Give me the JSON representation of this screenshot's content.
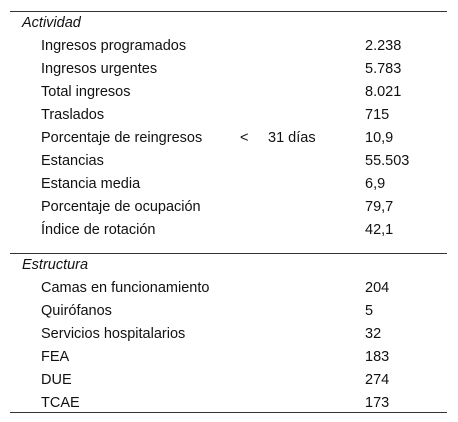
{
  "table": {
    "sections": [
      {
        "title": "Actividad",
        "rows": [
          {
            "label": "Ingresos programados",
            "value": "2.238"
          },
          {
            "label": "Ingresos urgentes",
            "value": "5.783"
          },
          {
            "label": "Total ingresos",
            "value": "8.021"
          },
          {
            "label": "Traslados",
            "value": "715"
          },
          {
            "label": "Porcentaje de reingresos",
            "operator": "<",
            "threshold": "31 días",
            "value": "10,9"
          },
          {
            "label": "Estancias",
            "value": "55.503"
          },
          {
            "label": "Estancia media",
            "value": "6,9"
          },
          {
            "label": "Porcentaje de ocupación",
            "value": "79,7"
          },
          {
            "label": "Índice de rotación",
            "value": "42,1"
          }
        ]
      },
      {
        "title": "Estructura",
        "rows": [
          {
            "label": "Camas en funcionamiento",
            "value": "204"
          },
          {
            "label": "Quirófanos",
            "value": "5"
          },
          {
            "label": "Servicios hospitalarios",
            "value": "32"
          },
          {
            "label": "FEA",
            "value": "183"
          },
          {
            "label": "DUE",
            "value": "274"
          },
          {
            "label": "TCAE",
            "value": "173"
          }
        ]
      }
    ]
  }
}
